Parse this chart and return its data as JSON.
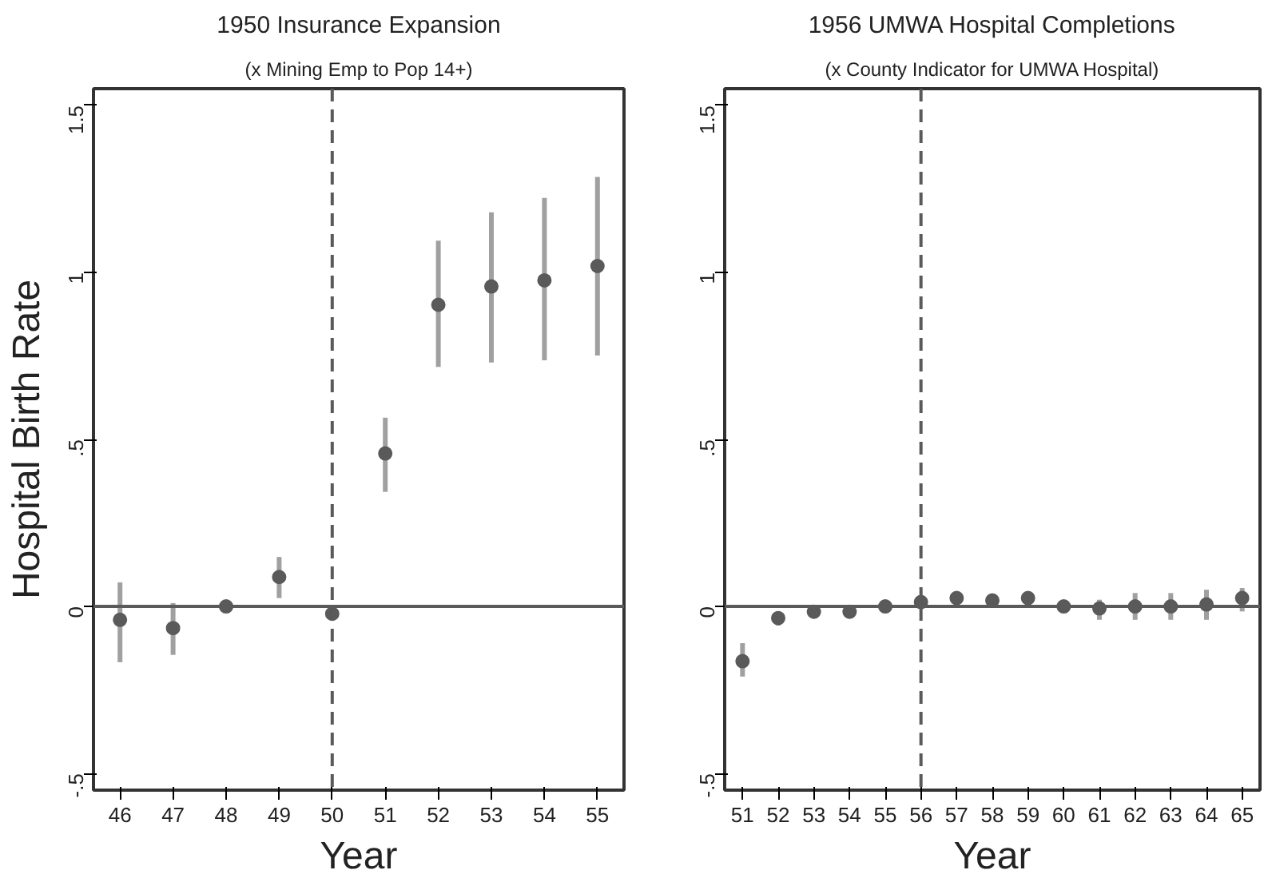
{
  "chart_data": [
    {
      "type": "scatter",
      "title": "1950 Insurance Expansion",
      "subtitle": "(x Mining Emp to Pop 14+)",
      "xlabel": "Year",
      "ylabel": "Hospital Birth Rate",
      "x": [
        46,
        47,
        48,
        49,
        50,
        51,
        52,
        53,
        54,
        55
      ],
      "series": [
        {
          "color": "#5a5a5a",
          "values": [
            -0.04,
            -0.065,
            0,
            0.088,
            -0.022,
            0.458,
            0.903,
            0.958,
            0.976,
            1.019
          ],
          "errors": [
            [
              -0.167,
              0.072
            ],
            [
              -0.145,
              0.01
            ],
            null,
            [
              0.025,
              0.148
            ],
            null,
            [
              0.343,
              0.565
            ],
            [
              0.717,
              1.095
            ],
            [
              0.73,
              1.18
            ],
            [
              0.737,
              1.223
            ],
            [
              0.751,
              1.286
            ]
          ]
        }
      ],
      "xlim": [
        45.5,
        55.5
      ],
      "xticks": [
        46,
        47,
        48,
        49,
        50,
        51,
        52,
        53,
        54,
        55
      ],
      "ylim": [
        -0.55,
        1.55
      ],
      "yticks": [
        {
          "value": -0.5,
          "label": "-.5"
        },
        0,
        {
          "value": 0.5,
          "label": ".5"
        },
        1,
        {
          "value": 1.5,
          "label": "1.5"
        }
      ],
      "ref_lines": [
        {
          "axis": "y",
          "value": 0,
          "color": "#5a5a5a",
          "line_style": "solid"
        },
        {
          "axis": "x",
          "value": 50,
          "color": "#5a5a5a",
          "line_style": "dashed"
        }
      ],
      "grid": false,
      "marker": "circle"
    },
    {
      "type": "scatter",
      "title": "1956 UMWA Hospital Completions",
      "subtitle": "(x County Indicator for UMWA Hospital)",
      "xlabel": "Year",
      "x": [
        51,
        52,
        53,
        54,
        55,
        56,
        57,
        58,
        59,
        60,
        61,
        62,
        63,
        64,
        65
      ],
      "series": [
        {
          "color": "#5a5a5a",
          "values": [
            -0.164,
            -0.035,
            -0.016,
            -0.016,
            0,
            0.013,
            0.025,
            0.018,
            0.025,
            0,
            -0.006,
            0,
            0,
            0.006,
            0.025
          ],
          "errors": [
            [
              -0.21,
              -0.11
            ],
            [
              -0.057,
              -0.014
            ],
            null,
            null,
            null,
            null,
            null,
            null,
            null,
            null,
            [
              -0.04,
              0.02
            ],
            [
              -0.04,
              0.04
            ],
            [
              -0.04,
              0.04
            ],
            [
              -0.04,
              0.05
            ],
            [
              -0.015,
              0.055
            ]
          ]
        }
      ],
      "xlim": [
        50.5,
        65.5
      ],
      "xticks": [
        51,
        52,
        53,
        54,
        55,
        56,
        57,
        58,
        59,
        60,
        61,
        62,
        63,
        64,
        65
      ],
      "ylim": [
        -0.55,
        1.55
      ],
      "yticks": [
        {
          "value": -0.5,
          "label": "-.5"
        },
        0,
        {
          "value": 0.5,
          "label": ".5"
        },
        1,
        {
          "value": 1.5,
          "label": "1.5"
        }
      ],
      "ref_lines": [
        {
          "axis": "y",
          "value": 0,
          "color": "#5a5a5a",
          "line_style": "solid"
        },
        {
          "axis": "x",
          "value": 56,
          "color": "#5a5a5a",
          "line_style": "dashed"
        }
      ],
      "grid": false,
      "marker": "circle"
    }
  ]
}
